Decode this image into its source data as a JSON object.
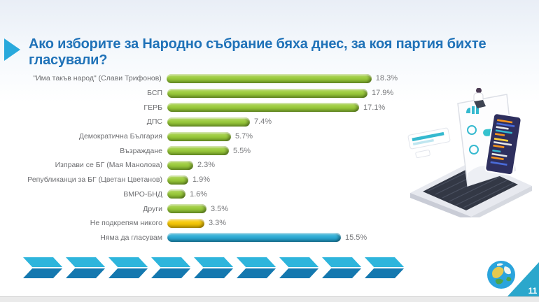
{
  "header": {
    "title": "Ако изборите за Народно събрание бяха днес, за коя партия бихте гласували?"
  },
  "chart_data": {
    "type": "bar",
    "orientation": "horizontal",
    "title": "Ако изборите за Народно събрание бяха днес, за коя партия бихте гласували?",
    "categories": [
      "\"Има такъв народ\" (Слави Трифонов)",
      "БСП",
      "ГЕРБ",
      "ДПС",
      "Демократична България",
      "Възраждане",
      "Изправи се БГ (Мая Манолова)",
      "Републиканци за БГ (Цветан Цветанов)",
      "ВМРО-БНД",
      "Други",
      "Не подкрепям никого",
      "Няма да гласувам"
    ],
    "values": [
      18.3,
      17.9,
      17.1,
      7.4,
      5.7,
      5.5,
      2.3,
      1.9,
      1.6,
      3.5,
      3.3,
      15.5
    ],
    "value_labels": [
      "18.3%",
      "17.9%",
      "17.1%",
      "7.4%",
      "5.7%",
      "5.5%",
      "2.3%",
      "1.9%",
      "1.6%",
      "3.5%",
      "3.3%",
      "15.5%"
    ],
    "bar_colors": [
      "green",
      "green",
      "green",
      "green",
      "green",
      "green",
      "green",
      "green",
      "green",
      "green",
      "yellow",
      "blue"
    ],
    "palette": {
      "green": {
        "light": "#BBDD6C",
        "mid": "#9BCA3E",
        "dark": "#7FAF2B"
      },
      "yellow": {
        "light": "#FFDE57",
        "mid": "#F4C70A",
        "dark": "#D9AF00"
      },
      "blue": {
        "light": "#66C8E4",
        "mid": "#2FAAD3",
        "dark": "#1B8FB9"
      }
    },
    "xlim": [
      0,
      19
    ],
    "grid": false,
    "legend": "none"
  },
  "footer": {
    "page_number": "11"
  },
  "colors": {
    "title_blue": "#1F72B8",
    "accent_cyan": "#29A9DC",
    "label_gray": "#6D6E71",
    "value_gray": "#77787B",
    "chevron_top": "#2EB5DC",
    "chevron_bottom": "#1478AF",
    "corner_triangle": "#2BA7CC"
  },
  "icons": {
    "title_bullet": "right-triangle-icon",
    "footer_band": "chevron-arrows-band",
    "footer_globe": "globe-icon",
    "side_art": "laptop-coding-illustration"
  }
}
